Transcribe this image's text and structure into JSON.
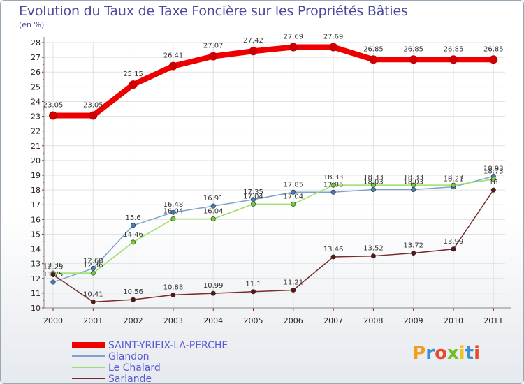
{
  "chart_data": {
    "type": "line",
    "title": "Evolution du Taux de Taxe Foncière sur les Propriétés Bâties",
    "unit_label": "(en %)",
    "x": [
      "2000",
      "2001",
      "2002",
      "2003",
      "2004",
      "2005",
      "2006",
      "2007",
      "2008",
      "2009",
      "2010",
      "2011"
    ],
    "ylim": [
      10,
      28
    ],
    "yticks": [
      10,
      11,
      12,
      13,
      14,
      15,
      16,
      17,
      18,
      19,
      20,
      21,
      22,
      23,
      24,
      25,
      26,
      27,
      28
    ],
    "series": [
      {
        "name": "SAINT-YRIEIX-LA-PERCHE",
        "color": "#ee0000",
        "marker": "#cc0000",
        "values": [
          23.05,
          23.05,
          25.15,
          26.41,
          27.07,
          27.42,
          27.69,
          27.69,
          26.85,
          26.85,
          26.85,
          26.85
        ],
        "labels": [
          "23.05",
          "23.05",
          "25.15",
          "26.41",
          "27.07",
          "27.42",
          "27.69",
          "27.69",
          "26.85",
          "26.85",
          "26.85",
          "26.85"
        ]
      },
      {
        "name": "Glandon",
        "color": "#7ba4cc",
        "marker": "#3f7fbf",
        "values": [
          11.75,
          12.68,
          15.6,
          16.48,
          16.91,
          17.35,
          17.85,
          17.85,
          18.03,
          18.03,
          18.21,
          18.93
        ],
        "labels": [
          "11.75",
          "12.68",
          "15.6",
          "16.48",
          "16.91",
          "17.35",
          "17.85",
          "17.85",
          "18.03",
          "18.03",
          "18.21",
          "18.93"
        ]
      },
      {
        "name": "Le Chalard",
        "color": "#99e066",
        "marker": "#77cc33",
        "values": [
          12.36,
          12.36,
          14.46,
          16.04,
          16.04,
          17.04,
          17.04,
          18.33,
          18.33,
          18.33,
          18.33,
          18.73
        ],
        "labels": [
          "12.36",
          "12.36",
          "14.46",
          "16.04",
          "16.04",
          "17.04",
          "17.04",
          "18.33",
          "18.33",
          "18.33",
          "18.33",
          "18.73"
        ]
      },
      {
        "name": "Sarlande",
        "color": "#7a2a2a",
        "marker": "#5a1515",
        "values": [
          12.25,
          10.41,
          10.56,
          10.88,
          10.99,
          11.1,
          11.21,
          13.46,
          13.52,
          13.72,
          13.99,
          18
        ],
        "labels": [
          "12.25",
          "10.41",
          "10.56",
          "10.88",
          "10.99",
          "11.1",
          "11.21",
          "13.46",
          "13.52",
          "13.72",
          "13.99",
          "18"
        ]
      }
    ],
    "legend_position": "bottom-left"
  },
  "logo": {
    "text": "Proxiti"
  }
}
